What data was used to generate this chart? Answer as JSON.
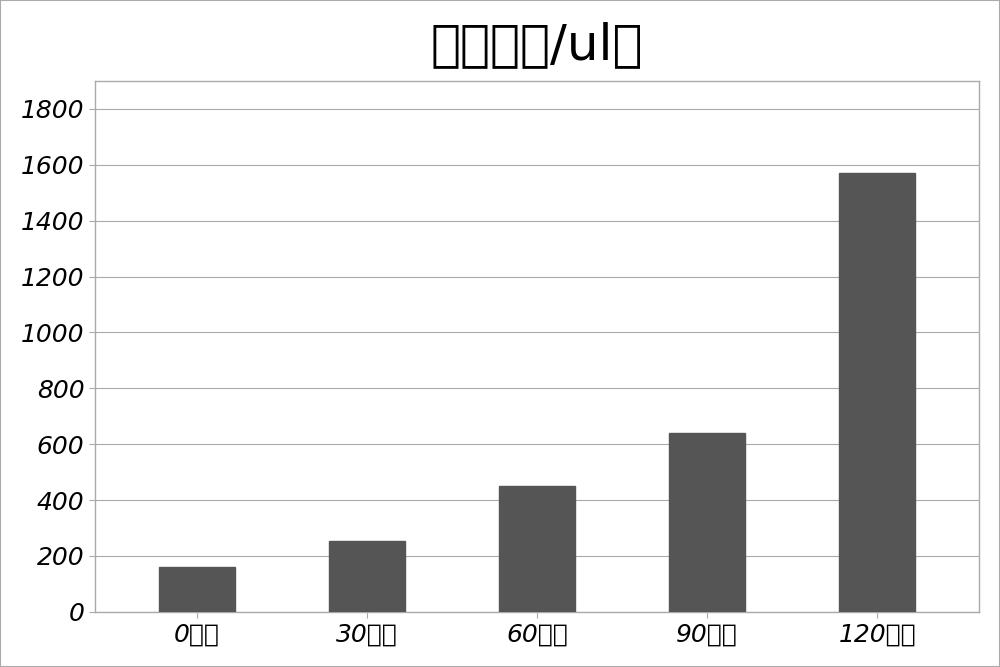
{
  "categories": [
    "0分钟",
    "30分钟",
    "60分钟",
    "90分钟",
    "120分钟"
  ],
  "values": [
    160,
    255,
    450,
    640,
    1570
  ],
  "bar_color": "#555555",
  "title": "计数（个/ul）",
  "title_fontsize": 36,
  "ytick_fontsize": 18,
  "xtick_fontsize": 18,
  "ylabel_ticks": [
    0,
    200,
    400,
    600,
    800,
    1000,
    1200,
    1400,
    1600,
    1800
  ],
  "ylim": [
    0,
    1900
  ],
  "background_color": "#ffffff",
  "grid_color": "#aaaaaa",
  "bar_width": 0.45,
  "border_color": "#aaaaaa",
  "figure_border": true
}
